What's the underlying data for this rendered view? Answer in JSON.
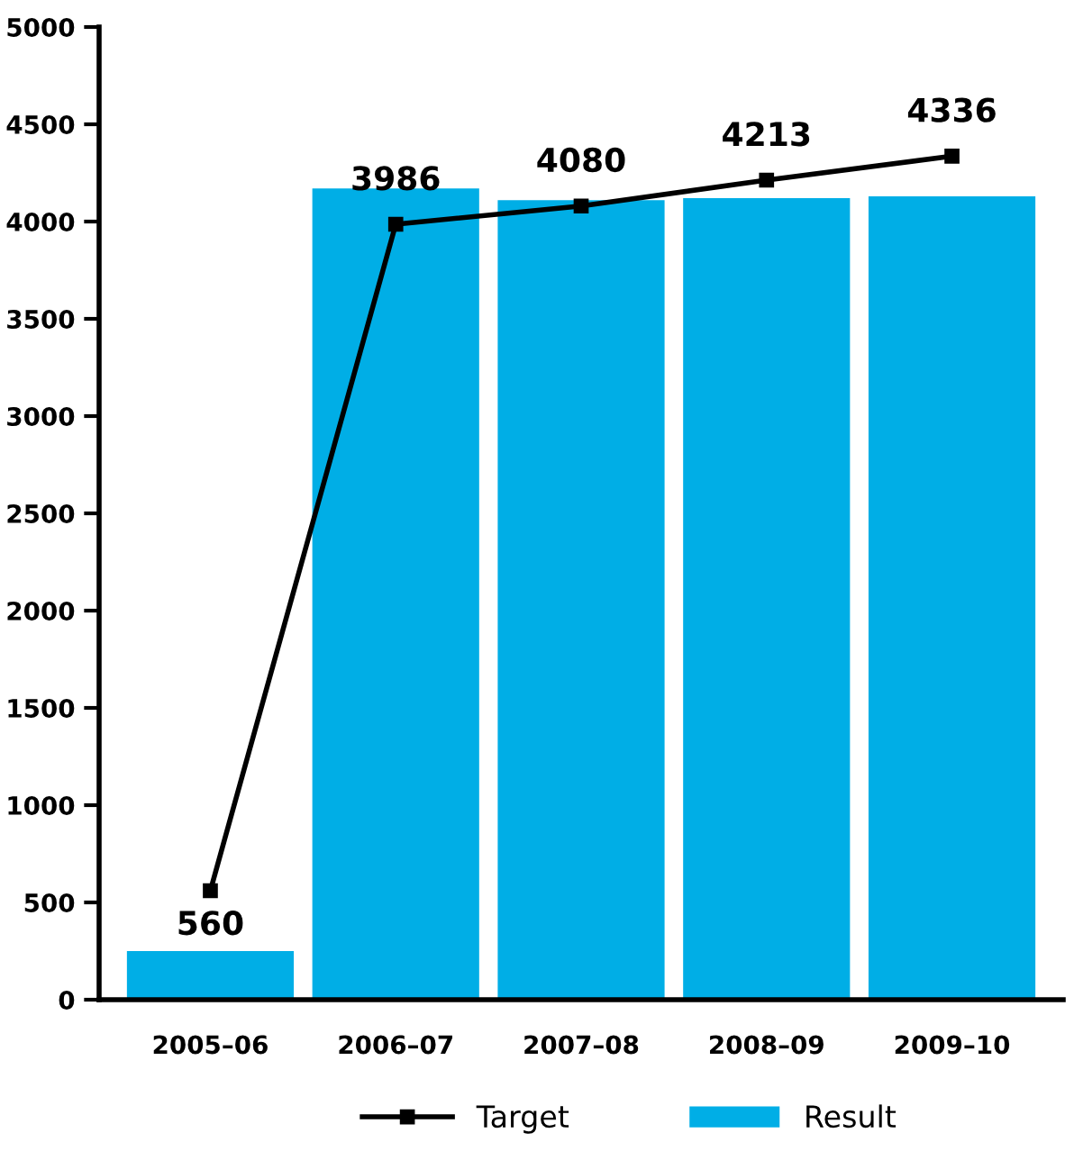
{
  "chart_data": {
    "type": "bar",
    "categories": [
      "2005–06",
      "2006–07",
      "2007–08",
      "2008–09",
      "2009–10"
    ],
    "series": [
      {
        "name": "Result",
        "color": "#00aee6",
        "values": [
          250,
          4170,
          4110,
          4120,
          4130
        ]
      },
      {
        "name": "Target",
        "type": "line",
        "color": "#000000",
        "marker": "square",
        "values": [
          560,
          3986,
          4080,
          4213,
          4336
        ],
        "value_labels": [
          "560",
          "3986",
          "4080",
          "4213",
          "4336"
        ]
      }
    ],
    "ylim": [
      0,
      5000
    ],
    "yticks": [
      0,
      500,
      1000,
      1500,
      2000,
      2500,
      3000,
      3500,
      4000,
      4500,
      5000
    ],
    "grid": false,
    "legend": "bottom"
  }
}
